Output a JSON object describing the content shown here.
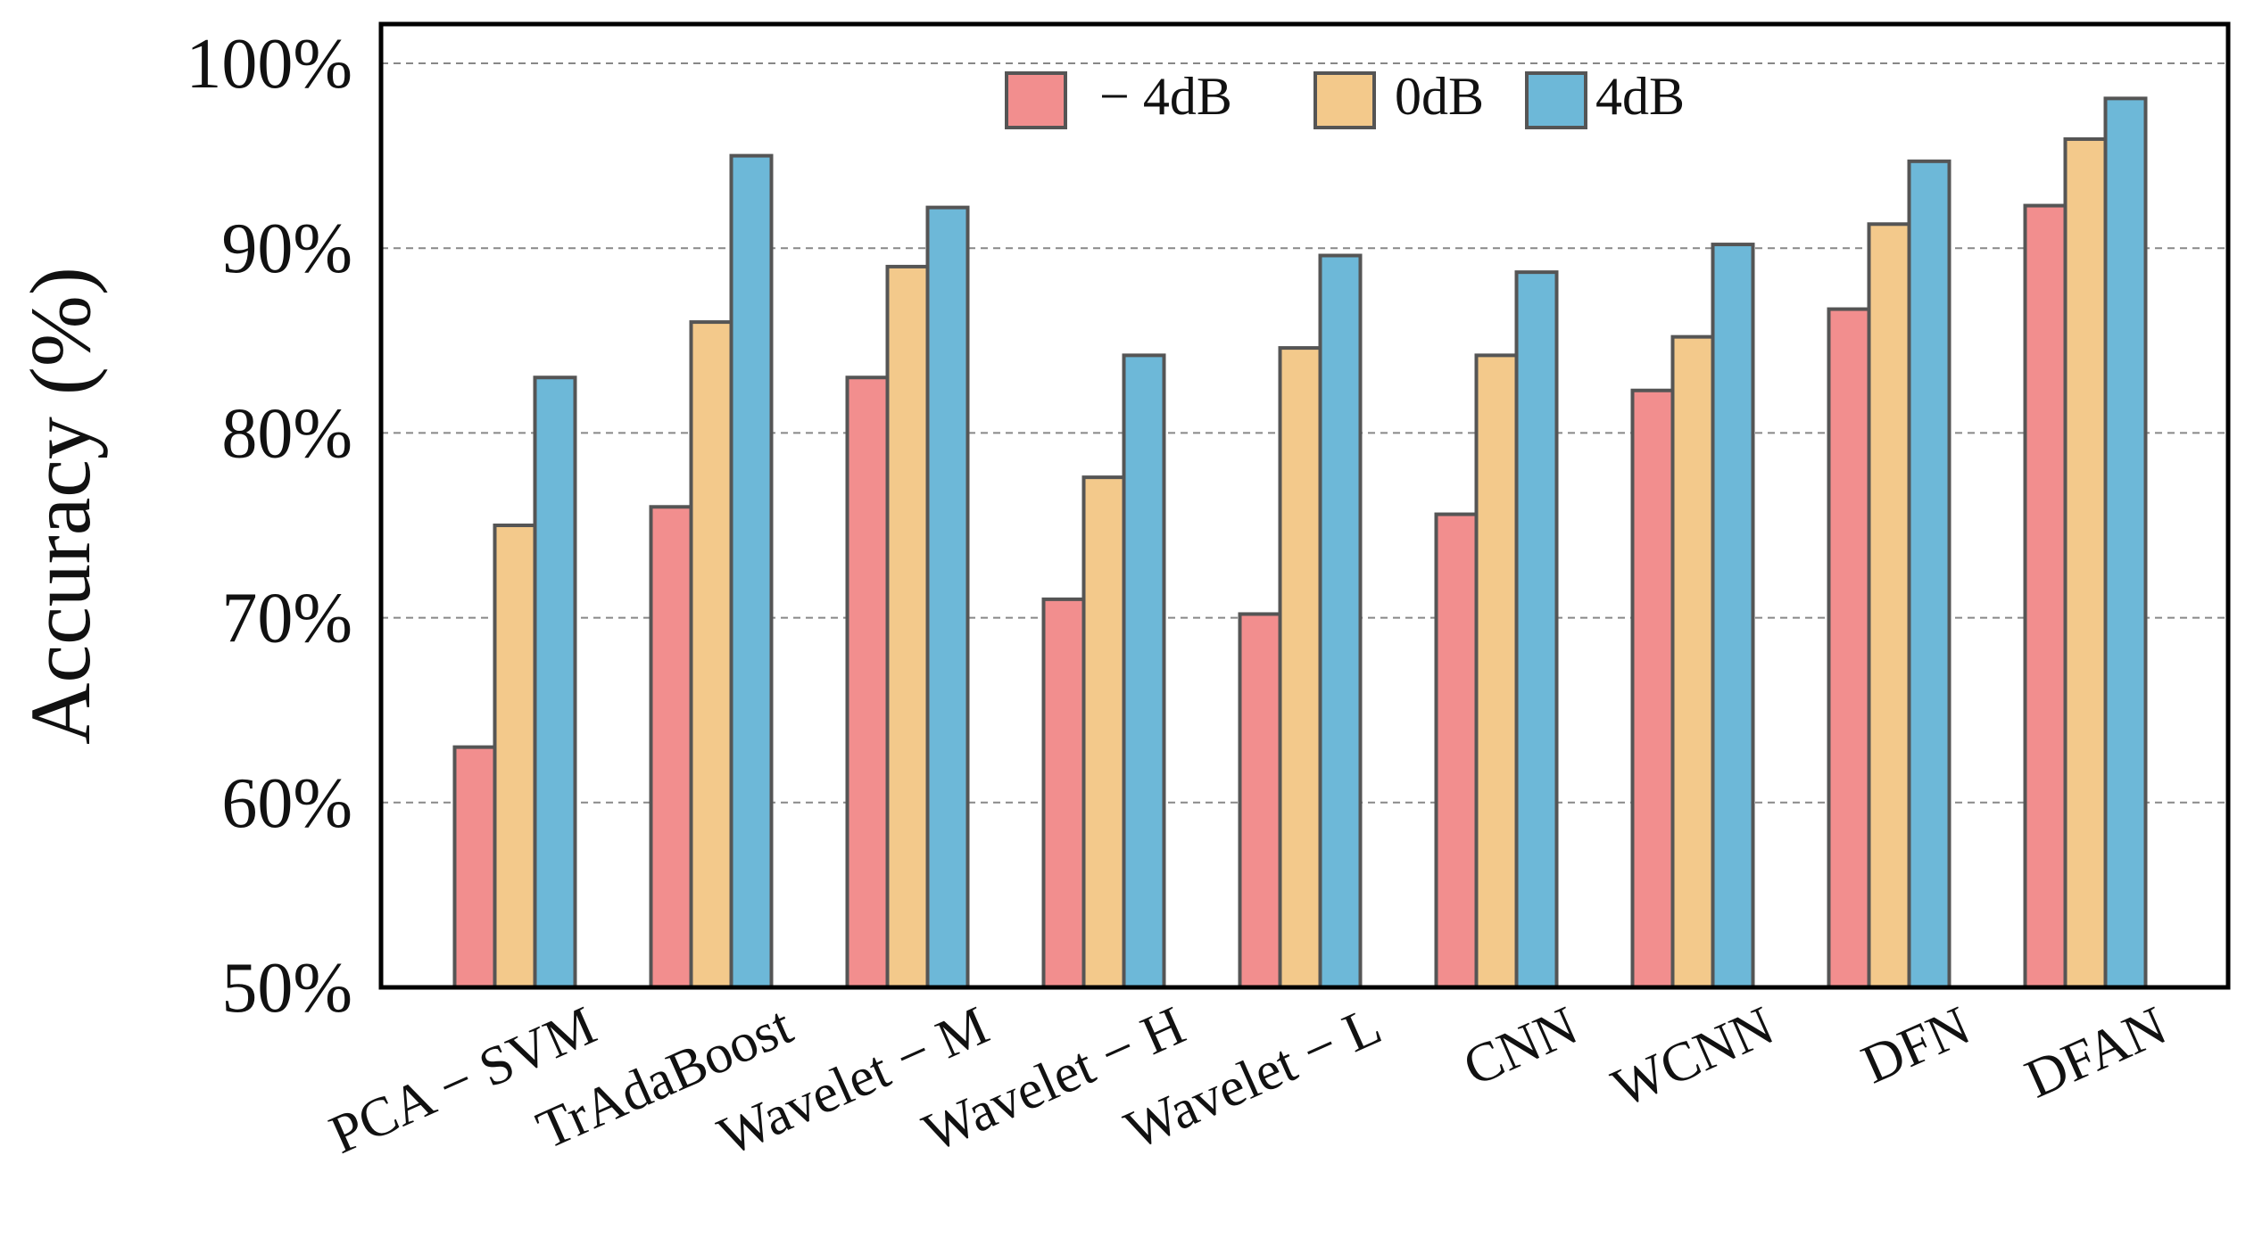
{
  "chart_data": {
    "type": "bar",
    "title": "",
    "xlabel": "",
    "ylabel": "Accuracy (%)",
    "ylim": [
      50,
      100
    ],
    "yticks": [
      "50%",
      "60%",
      "70%",
      "80%",
      "90%",
      "100%"
    ],
    "ytick_values": [
      50,
      60,
      70,
      80,
      90,
      100
    ],
    "grid": "horizontal dashed",
    "legend_position": "top",
    "categories": [
      "PCA − SVM",
      "TrAdaBoost",
      "Wavelet − M",
      "Wavelet − H",
      "Wavelet − L",
      "CNN",
      "WCNN",
      "DFN",
      "DFAN"
    ],
    "series": [
      {
        "name": "− 4dB",
        "color": "#f28e8e",
        "values": [
          63.0,
          76.0,
          83.0,
          71.0,
          70.2,
          75.6,
          82.3,
          86.7,
          92.3
        ]
      },
      {
        "name": "0dB",
        "color": "#f3c98b",
        "values": [
          75.0,
          86.0,
          89.0,
          77.6,
          84.6,
          84.2,
          85.2,
          91.3,
          95.9
        ]
      },
      {
        "name": "4dB",
        "color": "#6db8d8",
        "values": [
          83.0,
          95.0,
          92.2,
          84.2,
          89.6,
          88.7,
          90.2,
          94.7,
          98.1
        ]
      }
    ]
  }
}
